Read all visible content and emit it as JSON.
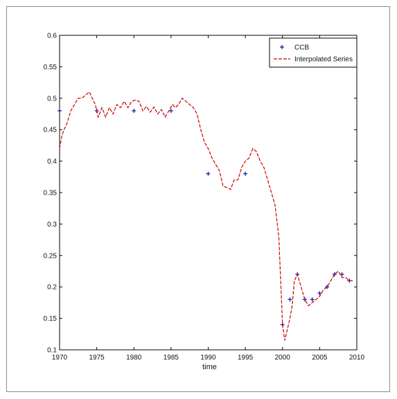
{
  "chart_data": {
    "type": "line",
    "title": "",
    "xlabel": "time",
    "ylabel": "",
    "xlim": [
      1970,
      2010
    ],
    "ylim": [
      0.1,
      0.6
    ],
    "grid": false,
    "legend_position": "top-right",
    "x_ticks": [
      1970,
      1975,
      1980,
      1985,
      1990,
      1995,
      2000,
      2005,
      2010
    ],
    "x_tick_labels": [
      "1970",
      "1975",
      "1980",
      "1985",
      "1990",
      "1995",
      "2000",
      "2005",
      "2010"
    ],
    "y_ticks": [
      0.1,
      0.15,
      0.2,
      0.25,
      0.3,
      0.35,
      0.4,
      0.45,
      0.5,
      0.55,
      0.6
    ],
    "y_tick_labels": [
      "0.1",
      "0.15",
      "0.2",
      "0.25",
      "0.3",
      "0.35",
      "0.4",
      "0.45",
      "0.5",
      "0.55",
      "0.6"
    ],
    "series": [
      {
        "name": "CCB",
        "kind": "markers",
        "marker": "star",
        "color": "#1a1aa8",
        "x": [
          1970,
          1975,
          1980,
          1985,
          1990,
          1995,
          2000,
          2001,
          2002,
          2003,
          2004,
          2005,
          2006,
          2007,
          2008,
          2009
        ],
        "y": [
          0.48,
          0.48,
          0.48,
          0.48,
          0.38,
          0.38,
          0.14,
          0.18,
          0.22,
          0.18,
          0.18,
          0.19,
          0.2,
          0.22,
          0.22,
          0.21
        ]
      },
      {
        "name": "Interpolated Series",
        "kind": "line",
        "style": "dashed",
        "color": "#cc0000",
        "x": [
          1970.0,
          1970.3,
          1970.6,
          1971.0,
          1971.5,
          1972.0,
          1972.5,
          1973.0,
          1973.5,
          1974.0,
          1974.4,
          1974.8,
          1975.2,
          1975.7,
          1976.2,
          1976.7,
          1977.2,
          1977.7,
          1978.2,
          1978.7,
          1979.2,
          1979.7,
          1980.2,
          1980.7,
          1981.2,
          1981.7,
          1982.2,
          1982.7,
          1983.2,
          1983.7,
          1984.2,
          1984.7,
          1985.2,
          1985.6,
          1986.0,
          1986.5,
          1987.0,
          1987.5,
          1988.0,
          1988.5,
          1989.0,
          1989.5,
          1990.0,
          1990.5,
          1991.0,
          1991.5,
          1992.0,
          1992.5,
          1993.0,
          1993.5,
          1994.0,
          1994.5,
          1995.0,
          1995.5,
          1996.0,
          1996.5,
          1997.0,
          1997.5,
          1998.0,
          1998.5,
          1999.0,
          1999.5,
          2000.0,
          2000.3,
          2000.6,
          2001.0,
          2001.3,
          2001.6,
          2002.0,
          2002.5,
          2003.0,
          2003.5,
          2004.0,
          2004.5,
          2005.0,
          2005.5,
          2006.0,
          2006.5,
          2007.0,
          2007.5,
          2008.0,
          2008.5,
          2009.0,
          2009.5
        ],
        "y": [
          0.42,
          0.44,
          0.45,
          0.46,
          0.48,
          0.49,
          0.5,
          0.5,
          0.505,
          0.51,
          0.5,
          0.49,
          0.47,
          0.485,
          0.47,
          0.485,
          0.475,
          0.49,
          0.485,
          0.495,
          0.485,
          0.495,
          0.497,
          0.495,
          0.48,
          0.487,
          0.478,
          0.486,
          0.475,
          0.482,
          0.47,
          0.48,
          0.49,
          0.485,
          0.49,
          0.5,
          0.495,
          0.49,
          0.485,
          0.475,
          0.45,
          0.43,
          0.42,
          0.405,
          0.395,
          0.385,
          0.36,
          0.358,
          0.355,
          0.37,
          0.37,
          0.39,
          0.4,
          0.405,
          0.42,
          0.415,
          0.4,
          0.39,
          0.37,
          0.35,
          0.33,
          0.28,
          0.14,
          0.115,
          0.13,
          0.15,
          0.17,
          0.21,
          0.22,
          0.2,
          0.18,
          0.17,
          0.175,
          0.18,
          0.185,
          0.195,
          0.2,
          0.21,
          0.22,
          0.225,
          0.215,
          0.215,
          0.21,
          0.21
        ]
      }
    ]
  }
}
